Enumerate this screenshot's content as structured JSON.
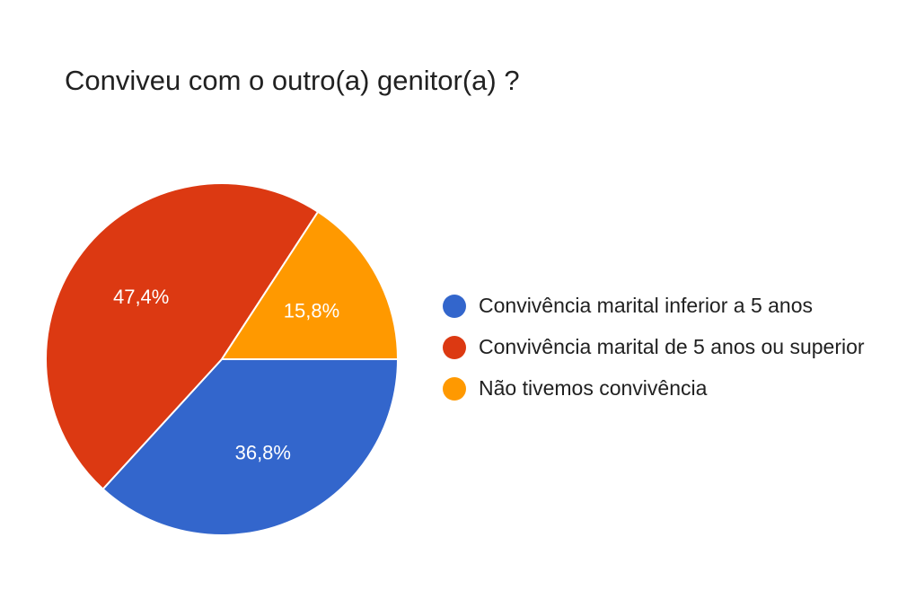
{
  "chart_data": {
    "type": "pie",
    "title": "Conviveu com o outro(a) genitor(a) ?",
    "slices": [
      {
        "label": "Convivência marital inferior a 5 anos",
        "value": 36.8,
        "display": "36,8%",
        "color": "#3366cc"
      },
      {
        "label": "Convivência marital de 5 anos ou superior",
        "value": 47.4,
        "display": "47,4%",
        "color": "#dc3912"
      },
      {
        "label": "Não tivemos convivência",
        "value": 15.8,
        "display": "15,8%",
        "color": "#ff9900"
      }
    ],
    "legend_position": "right"
  },
  "legend": {
    "items": [
      {
        "label": "Convivência marital inferior a 5 anos",
        "color": "#3366cc"
      },
      {
        "label": "Convivência marital de 5 anos ou superior",
        "color": "#dc3912"
      },
      {
        "label": "Não tivemos convivência",
        "color": "#ff9900"
      }
    ]
  }
}
